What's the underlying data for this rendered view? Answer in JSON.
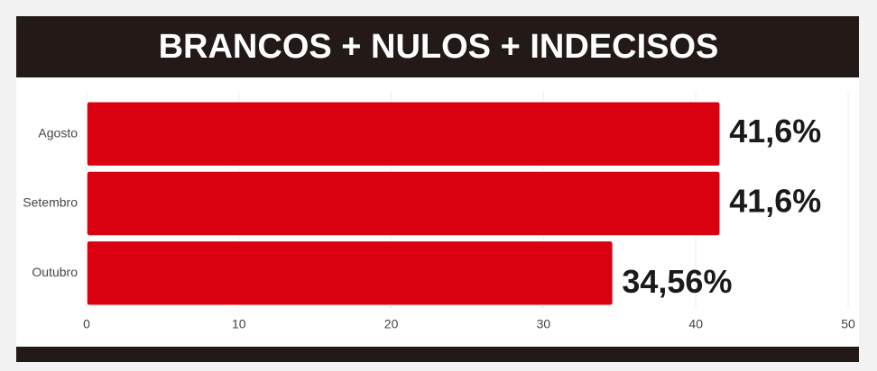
{
  "chart_data": {
    "type": "bar",
    "orientation": "horizontal",
    "title": "BRANCOS + NULOS + INDECISOS",
    "categories": [
      "Agosto",
      "Setembro",
      "Outubro"
    ],
    "values": [
      41.6,
      41.6,
      34.56
    ],
    "value_labels": [
      "41,6%",
      "41,6%",
      "34,56%"
    ],
    "color": "#d9000f",
    "xlim": [
      0,
      50
    ],
    "xticks": [
      0,
      10,
      20,
      30,
      40,
      50
    ],
    "grid": true
  }
}
